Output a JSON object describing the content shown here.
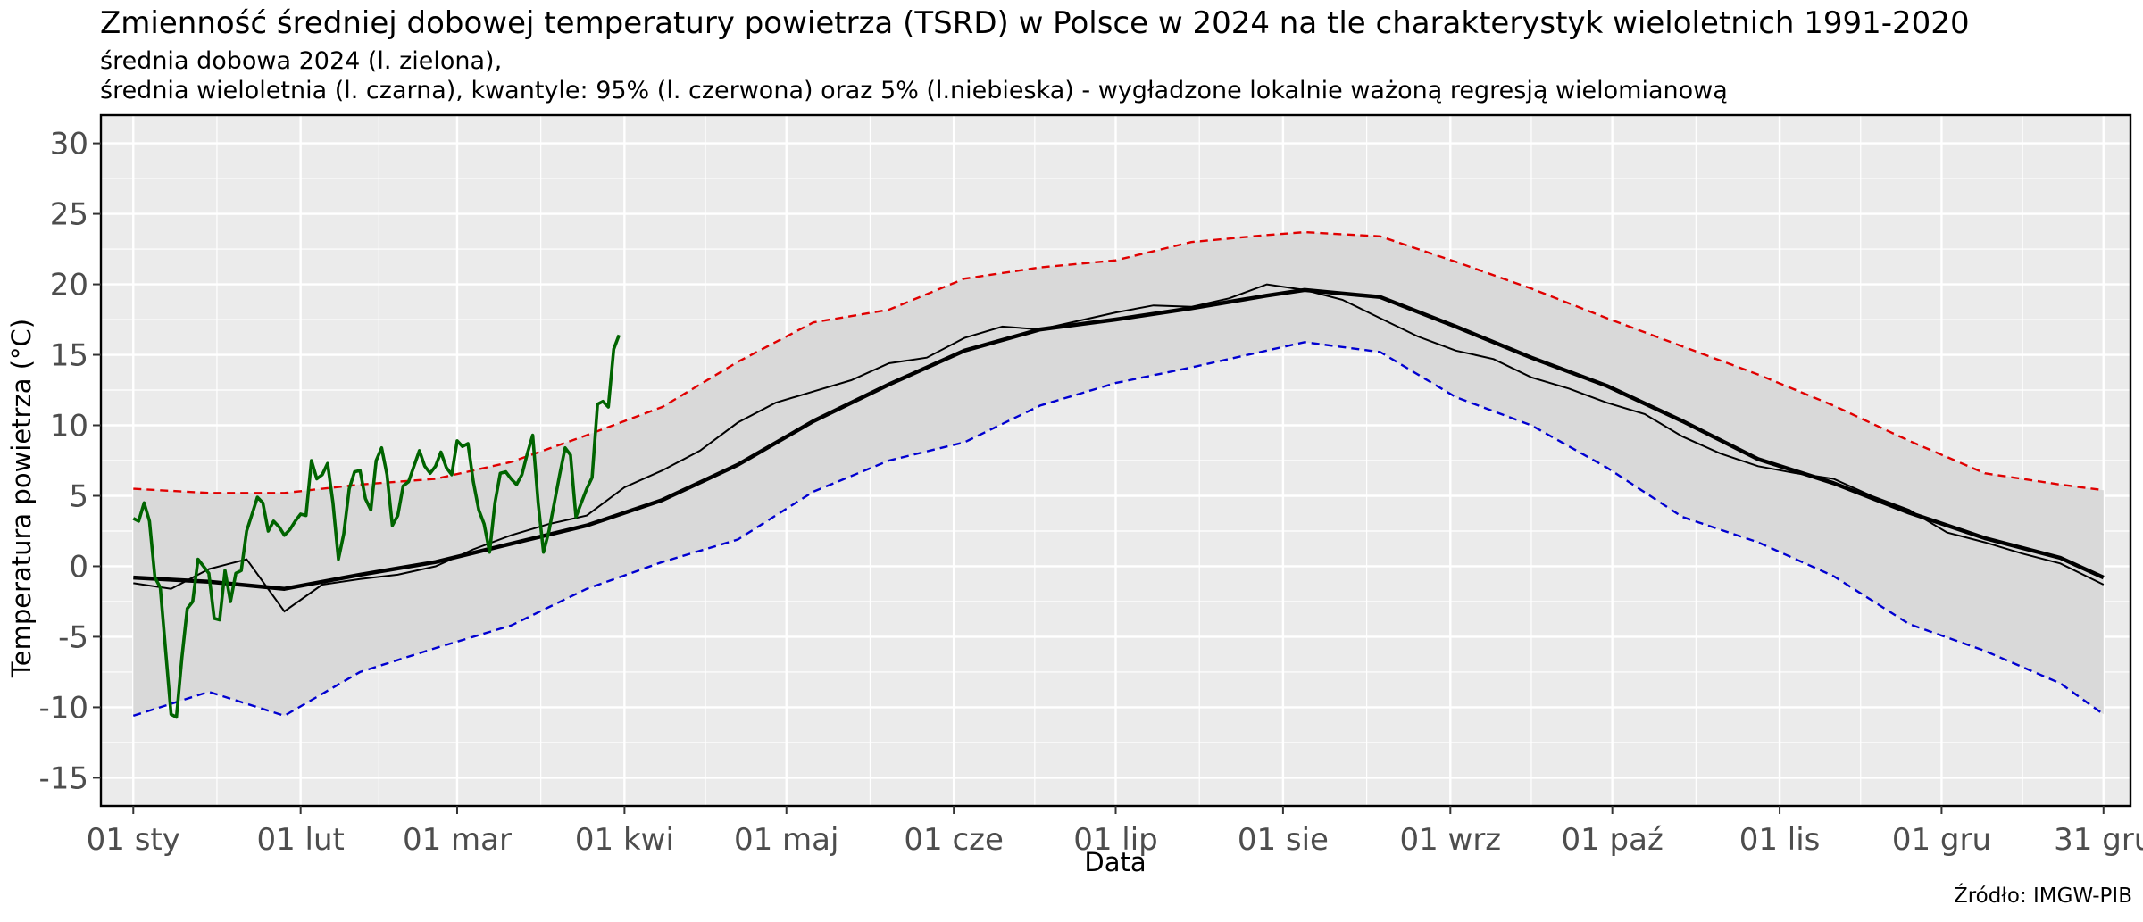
{
  "chart_data": {
    "type": "line",
    "title": "Zmienność średniej dobowej temperatury powietrza (TSRD) w Polsce w 2024 na tle charakterystyk wieloletnich 1991-2020",
    "subtitle_lines": [
      "średnia dobowa 2024 (l. zielona),",
      "średnia wieloletnia (l. czarna), kwantyle: 95% (l. czerwona) oraz 5% (l.niebieska) - wygładzone lokalnie ważoną regresją wielomianową"
    ],
    "xlabel": "Data",
    "ylabel": "Temperatura powietrza (°C)",
    "caption": "Źródło: IMGW-PIB",
    "xlim": [
      "2023-12-26",
      "2025-01-05"
    ],
    "ylim": [
      -17,
      32
    ],
    "yticks": [
      -15,
      -10,
      -5,
      0,
      5,
      10,
      15,
      20,
      25,
      30
    ],
    "ytick_labels": [
      "-15",
      "-10",
      "-5",
      "0",
      "5",
      "10",
      "15",
      "20",
      "25",
      "30"
    ],
    "xticks": [
      {
        "date": "2024-01-01",
        "label": "01 sty"
      },
      {
        "date": "2024-02-01",
        "label": "01 lut"
      },
      {
        "date": "2024-03-01",
        "label": "01 mar"
      },
      {
        "date": "2024-04-01",
        "label": "01 kwi"
      },
      {
        "date": "2024-05-01",
        "label": "01 maj"
      },
      {
        "date": "2024-06-01",
        "label": "01 cze"
      },
      {
        "date": "2024-07-01",
        "label": "01 lip"
      },
      {
        "date": "2024-08-01",
        "label": "01 sie"
      },
      {
        "date": "2024-09-01",
        "label": "01 wrz"
      },
      {
        "date": "2024-10-01",
        "label": "01 paź"
      },
      {
        "date": "2024-11-01",
        "label": "01 lis"
      },
      {
        "date": "2024-12-01",
        "label": "01 gru"
      },
      {
        "date": "2024-12-31",
        "label": "31 gru"
      }
    ],
    "grid": true,
    "colors": {
      "panel": "#ebebeb",
      "band": "#d9d9d9",
      "grid": "#ffffff",
      "mean_daily": "#000000",
      "mean_smooth": "#000000",
      "q95": "#e00000",
      "q05": "#0000d0",
      "tsrd_2024": "#006400"
    },
    "series": [
      {
        "name": "średnia dobowa 2024 (l. zielona)",
        "role": "tsrd_2024",
        "x": [
          "2024-01-01",
          "2024-01-02",
          "2024-01-03",
          "2024-01-04",
          "2024-01-05",
          "2024-01-06",
          "2024-01-07",
          "2024-01-08",
          "2024-01-09",
          "2024-01-10",
          "2024-01-11",
          "2024-01-12",
          "2024-01-13",
          "2024-01-14",
          "2024-01-15",
          "2024-01-16",
          "2024-01-17",
          "2024-01-18",
          "2024-01-19",
          "2024-01-20",
          "2024-01-21",
          "2024-01-22",
          "2024-01-23",
          "2024-01-24",
          "2024-01-25",
          "2024-01-26",
          "2024-01-27",
          "2024-01-28",
          "2024-01-29",
          "2024-01-30",
          "2024-01-31",
          "2024-02-01",
          "2024-02-02",
          "2024-02-03",
          "2024-02-04",
          "2024-02-05",
          "2024-02-06",
          "2024-02-07",
          "2024-02-08",
          "2024-02-09",
          "2024-02-10",
          "2024-02-11",
          "2024-02-12",
          "2024-02-13",
          "2024-02-14",
          "2024-02-15",
          "2024-02-16",
          "2024-02-17",
          "2024-02-18",
          "2024-02-19",
          "2024-02-20",
          "2024-02-21",
          "2024-02-22",
          "2024-02-23",
          "2024-02-24",
          "2024-02-25",
          "2024-02-26",
          "2024-02-27",
          "2024-02-28",
          "2024-02-29",
          "2024-03-01",
          "2024-03-02",
          "2024-03-03",
          "2024-03-04",
          "2024-03-05",
          "2024-03-06",
          "2024-03-07",
          "2024-03-08",
          "2024-03-09",
          "2024-03-10",
          "2024-03-11",
          "2024-03-12",
          "2024-03-13",
          "2024-03-14",
          "2024-03-15",
          "2024-03-16",
          "2024-03-17",
          "2024-03-18",
          "2024-03-19",
          "2024-03-20",
          "2024-03-21",
          "2024-03-22",
          "2024-03-23",
          "2024-03-24",
          "2024-03-25",
          "2024-03-26",
          "2024-03-27",
          "2024-03-28",
          "2024-03-29",
          "2024-03-30",
          "2024-03-31"
        ],
        "y": [
          3.4,
          3.2,
          4.5,
          3.2,
          -0.8,
          -1.5,
          -6.0,
          -10.5,
          -10.7,
          -6.5,
          -3.0,
          -2.5,
          0.5,
          0.0,
          -0.5,
          -3.7,
          -3.8,
          -0.3,
          -2.5,
          -0.5,
          -0.3,
          2.5,
          3.7,
          4.9,
          4.5,
          2.5,
          3.2,
          2.8,
          2.2,
          2.6,
          3.2,
          3.7,
          3.6,
          7.5,
          6.2,
          6.5,
          7.3,
          4.5,
          0.5,
          2.3,
          5.5,
          6.7,
          6.8,
          4.8,
          4.0,
          7.5,
          8.4,
          6.5,
          2.9,
          3.6,
          5.7,
          6.0,
          7.1,
          8.2,
          7.1,
          6.6,
          7.1,
          8.1,
          7.0,
          6.5,
          8.9,
          8.5,
          8.7,
          6.0,
          4.0,
          3.0,
          1.0,
          4.5,
          6.6,
          6.7,
          6.2,
          5.8,
          6.5,
          8.0,
          9.3,
          4.5,
          1.0,
          2.5,
          4.5,
          6.5,
          8.4,
          7.9,
          3.5,
          4.5,
          5.5,
          6.3,
          11.5,
          11.7,
          11.3,
          15.4,
          16.4
        ]
      },
      {
        "name": "średnia wieloletnia (l. czarna) - dobowa",
        "role": "mean_daily",
        "x": [
          "2024-01-01",
          "2024-01-08",
          "2024-01-15",
          "2024-01-22",
          "2024-01-29",
          "2024-02-05",
          "2024-02-12",
          "2024-02-19",
          "2024-02-26",
          "2024-03-04",
          "2024-03-11",
          "2024-03-18",
          "2024-03-25",
          "2024-04-01",
          "2024-04-08",
          "2024-04-15",
          "2024-04-22",
          "2024-04-29",
          "2024-05-06",
          "2024-05-13",
          "2024-05-20",
          "2024-05-27",
          "2024-06-03",
          "2024-06-10",
          "2024-06-17",
          "2024-06-24",
          "2024-07-01",
          "2024-07-08",
          "2024-07-15",
          "2024-07-22",
          "2024-07-29",
          "2024-08-05",
          "2024-08-12",
          "2024-08-19",
          "2024-08-26",
          "2024-09-02",
          "2024-09-09",
          "2024-09-16",
          "2024-09-23",
          "2024-09-30",
          "2024-10-07",
          "2024-10-14",
          "2024-10-21",
          "2024-10-28",
          "2024-11-04",
          "2024-11-11",
          "2024-11-18",
          "2024-11-25",
          "2024-12-02",
          "2024-12-09",
          "2024-12-16",
          "2024-12-23",
          "2024-12-31"
        ],
        "y": [
          -1.2,
          -1.6,
          -0.2,
          0.5,
          -3.2,
          -1.3,
          -0.9,
          -0.6,
          0.0,
          1.2,
          2.2,
          3.0,
          3.6,
          5.6,
          6.8,
          8.2,
          10.2,
          11.6,
          12.4,
          13.2,
          14.4,
          14.8,
          16.2,
          17.0,
          16.8,
          17.4,
          18.0,
          18.5,
          18.4,
          19.0,
          20.0,
          19.6,
          18.9,
          17.6,
          16.3,
          15.3,
          14.7,
          13.4,
          12.6,
          11.6,
          10.8,
          9.2,
          8.0,
          7.1,
          6.6,
          6.2,
          5.0,
          4.0,
          2.4,
          1.7,
          0.9,
          0.2,
          -1.3
        ]
      },
      {
        "name": "średnia wieloletnia (l. czarna)",
        "role": "mean_smooth",
        "x": [
          "2024-01-01",
          "2024-01-15",
          "2024-01-29",
          "2024-02-12",
          "2024-02-26",
          "2024-03-11",
          "2024-03-25",
          "2024-04-08",
          "2024-04-22",
          "2024-05-06",
          "2024-05-20",
          "2024-06-03",
          "2024-06-17",
          "2024-07-01",
          "2024-07-15",
          "2024-07-29",
          "2024-08-05",
          "2024-08-19",
          "2024-09-02",
          "2024-09-16",
          "2024-09-30",
          "2024-10-14",
          "2024-10-28",
          "2024-11-11",
          "2024-11-25",
          "2024-12-09",
          "2024-12-23",
          "2024-12-31"
        ],
        "y": [
          -0.8,
          -1.1,
          -1.6,
          -0.6,
          0.3,
          1.6,
          2.9,
          4.7,
          7.2,
          10.3,
          12.9,
          15.3,
          16.8,
          17.5,
          18.3,
          19.2,
          19.6,
          19.1,
          17.0,
          14.8,
          12.8,
          10.3,
          7.6,
          5.9,
          3.8,
          2.0,
          0.6,
          -0.8
        ]
      },
      {
        "name": "kwantyl 95% (l. czerwona)",
        "role": "q95",
        "x": [
          "2024-01-01",
          "2024-01-15",
          "2024-01-29",
          "2024-02-12",
          "2024-02-26",
          "2024-03-11",
          "2024-03-25",
          "2024-04-08",
          "2024-04-22",
          "2024-05-06",
          "2024-05-20",
          "2024-06-03",
          "2024-06-17",
          "2024-07-01",
          "2024-07-15",
          "2024-07-29",
          "2024-08-05",
          "2024-08-19",
          "2024-09-02",
          "2024-09-16",
          "2024-09-30",
          "2024-10-14",
          "2024-10-28",
          "2024-11-11",
          "2024-11-25",
          "2024-12-09",
          "2024-12-23",
          "2024-12-31"
        ],
        "y": [
          5.5,
          5.2,
          5.2,
          5.8,
          6.2,
          7.4,
          9.3,
          11.3,
          14.5,
          17.3,
          18.2,
          20.4,
          21.2,
          21.7,
          23.0,
          23.5,
          23.7,
          23.4,
          21.6,
          19.7,
          17.6,
          15.6,
          13.6,
          11.4,
          8.9,
          6.6,
          5.8,
          5.4
        ]
      },
      {
        "name": "kwantyl 5% (l.niebieska)",
        "role": "q05",
        "x": [
          "2024-01-01",
          "2024-01-15",
          "2024-01-29",
          "2024-02-12",
          "2024-02-26",
          "2024-03-11",
          "2024-03-25",
          "2024-04-08",
          "2024-04-22",
          "2024-05-06",
          "2024-05-20",
          "2024-06-03",
          "2024-06-17",
          "2024-07-01",
          "2024-07-15",
          "2024-07-29",
          "2024-08-05",
          "2024-08-19",
          "2024-09-02",
          "2024-09-16",
          "2024-09-30",
          "2024-10-14",
          "2024-10-28",
          "2024-11-11",
          "2024-11-25",
          "2024-12-09",
          "2024-12-23",
          "2024-12-31"
        ],
        "y": [
          -10.6,
          -8.9,
          -10.6,
          -7.5,
          -5.8,
          -4.2,
          -1.6,
          0.3,
          1.9,
          5.3,
          7.5,
          8.8,
          11.4,
          13.0,
          14.1,
          15.3,
          15.9,
          15.2,
          12.0,
          10.0,
          7.0,
          3.5,
          1.7,
          -0.7,
          -4.1,
          -6.0,
          -8.3,
          -10.5
        ]
      }
    ]
  }
}
